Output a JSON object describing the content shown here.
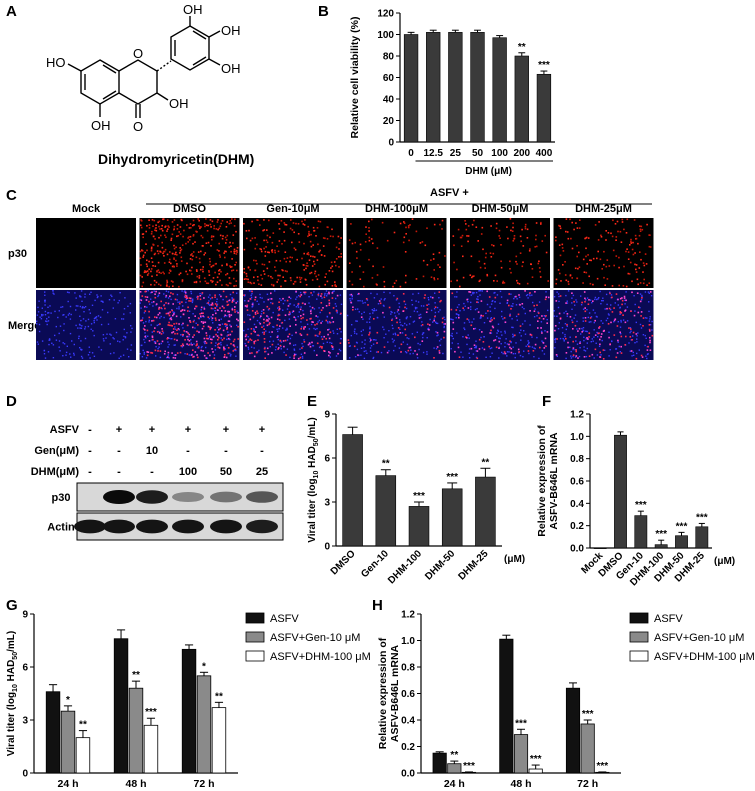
{
  "panels": {
    "A": "A",
    "B": "B",
    "C": "C",
    "D": "D",
    "E": "E",
    "F": "F",
    "G": "G",
    "H": "H"
  },
  "panelA": {
    "compound_name": "Dihydromyricetin(DHM)",
    "atoms": {
      "oh_top_left": "OH",
      "oh_top_right": "OH",
      "oh_right": "OH",
      "oh_ring_a_left": "HO",
      "oh_ring_a_bottom": "OH",
      "ring_o": "O",
      "ketone_o": "O",
      "oh_c3": "OH"
    }
  },
  "panelC": {
    "group_header": "ASFV +",
    "columns": [
      "Mock",
      "DMSO",
      "Gen-10μM",
      "DHM-100μM",
      "DHM-50μM",
      "DHM-25μM"
    ],
    "rows": [
      "p30",
      "Merge"
    ],
    "density": [
      0.0,
      0.85,
      0.55,
      0.2,
      0.28,
      0.38
    ]
  },
  "panelD": {
    "row_labels": [
      "ASFV",
      "Gen(μM)",
      "DHM(μM)"
    ],
    "lanes": [
      [
        "-",
        "-",
        "-"
      ],
      [
        "+",
        "-",
        "-"
      ],
      [
        "+",
        "10",
        "-"
      ],
      [
        "+",
        "-",
        "100"
      ],
      [
        "+",
        "-",
        "50"
      ],
      [
        "+",
        "-",
        "25"
      ]
    ],
    "blots": [
      "p30",
      "Actin"
    ],
    "p30_intensity": [
      0,
      1.0,
      0.9,
      0.35,
      0.45,
      0.6
    ],
    "actin_intensity": [
      0.95,
      0.95,
      0.95,
      0.95,
      0.95,
      0.9
    ]
  },
  "colors": {
    "bar_dark": "#3a3a3a",
    "bar_black": "#111111",
    "bar_grey": "#8a8a8a",
    "bar_white": "#ffffff",
    "red_fluor": "#ff2a1a",
    "blue_fluor": "#3a3aff",
    "merge_pink": "#ff44cc"
  },
  "chart_data": [
    {
      "panel": "B",
      "type": "bar",
      "categories": [
        "0",
        "12.5",
        "25",
        "50",
        "100",
        "200",
        "400"
      ],
      "values": [
        100,
        102,
        102,
        102,
        97,
        80,
        63
      ],
      "errors": [
        2,
        2,
        2,
        2,
        2,
        3,
        3
      ],
      "significance": [
        "",
        "",
        "",
        "",
        "",
        "**",
        "***"
      ],
      "ylabel": "Relative cell viability (%)",
      "xlabel": "DHM (μM)",
      "ylim": [
        0,
        120
      ],
      "yticks": [
        "0",
        "20",
        "40",
        "60",
        "80",
        "100",
        "120"
      ]
    },
    {
      "panel": "E",
      "type": "bar",
      "categories": [
        "DMSO",
        "Gen-10",
        "DHM-100",
        "DHM-50",
        "DHM-25"
      ],
      "values": [
        7.6,
        4.8,
        2.7,
        3.9,
        4.7
      ],
      "errors": [
        0.5,
        0.4,
        0.3,
        0.4,
        0.6
      ],
      "significance": [
        "",
        "**",
        "***",
        "***",
        "**"
      ],
      "ylabel_prefix": "Viral titer (log",
      "ylabel_sub": "10",
      "ylabel_mid": " HAD",
      "ylabel_sub2": "50",
      "ylabel_suffix": "/mL)",
      "unit": "(μM)",
      "ylim": [
        0,
        9
      ],
      "yticks": [
        "0",
        "3",
        "6",
        "9"
      ]
    },
    {
      "panel": "F",
      "type": "bar",
      "categories": [
        "Mock",
        "DMSO",
        "Gen-10",
        "DHM-100",
        "DHM-50",
        "DHM-25"
      ],
      "values": [
        0.0,
        1.01,
        0.29,
        0.03,
        0.11,
        0.19
      ],
      "errors": [
        0.0,
        0.03,
        0.04,
        0.04,
        0.03,
        0.03
      ],
      "significance": [
        "",
        "",
        "***",
        "***",
        "***",
        "***"
      ],
      "ylabel_line1": "Relative expression of",
      "ylabel_line2": "ASFV-B646L mRNA",
      "unit": "(μM)",
      "ylim": [
        0,
        1.2
      ],
      "yticks": [
        "0.0",
        "0.2",
        "0.4",
        "0.6",
        "0.8",
        "1.0",
        "1.2"
      ]
    },
    {
      "panel": "G",
      "type": "bar",
      "categories": [
        "24 h",
        "48 h",
        "72 h"
      ],
      "series": [
        {
          "name": "ASFV",
          "values": [
            4.6,
            7.6,
            7.0
          ],
          "errors": [
            0.4,
            0.5,
            0.25
          ],
          "significance": [
            "",
            "",
            ""
          ]
        },
        {
          "name": "ASFV+Gen-10 μM",
          "values": [
            3.5,
            4.8,
            5.5
          ],
          "errors": [
            0.3,
            0.4,
            0.2
          ],
          "significance": [
            "*",
            "**",
            "*"
          ]
        },
        {
          "name": "ASFV+DHM-100 μM",
          "values": [
            2.0,
            2.7,
            3.7
          ],
          "errors": [
            0.4,
            0.4,
            0.3
          ],
          "significance": [
            "**",
            "***",
            "**"
          ]
        }
      ],
      "ylabel_prefix": "Viral titer (log",
      "ylabel_sub": "10",
      "ylabel_mid": " HAD",
      "ylabel_sub2": "50",
      "ylabel_suffix": "/mL)",
      "ylim": [
        0,
        9
      ],
      "yticks": [
        "0",
        "3",
        "6",
        "9"
      ]
    },
    {
      "panel": "H",
      "type": "bar",
      "categories": [
        "24 h",
        "48 h",
        "72 h"
      ],
      "series": [
        {
          "name": "ASFV",
          "values": [
            0.15,
            1.01,
            0.64
          ],
          "errors": [
            0.01,
            0.03,
            0.04
          ],
          "significance": [
            "",
            "",
            ""
          ]
        },
        {
          "name": "ASFV+Gen-10 μM",
          "values": [
            0.07,
            0.29,
            0.37
          ],
          "errors": [
            0.02,
            0.04,
            0.03
          ],
          "significance": [
            "**",
            "***",
            "***"
          ]
        },
        {
          "name": "ASFV+DHM-100 μM",
          "values": [
            0.005,
            0.03,
            0.005
          ],
          "errors": [
            0.003,
            0.03,
            0.003
          ],
          "significance": [
            "***",
            "***",
            "***"
          ]
        }
      ],
      "ylabel_line1": "Relative expression of",
      "ylabel_line2": "ASFV-B646L mRNA",
      "ylim": [
        0,
        1.2
      ],
      "yticks": [
        "0.0",
        "0.2",
        "0.4",
        "0.6",
        "0.8",
        "1.0",
        "1.2"
      ]
    }
  ]
}
